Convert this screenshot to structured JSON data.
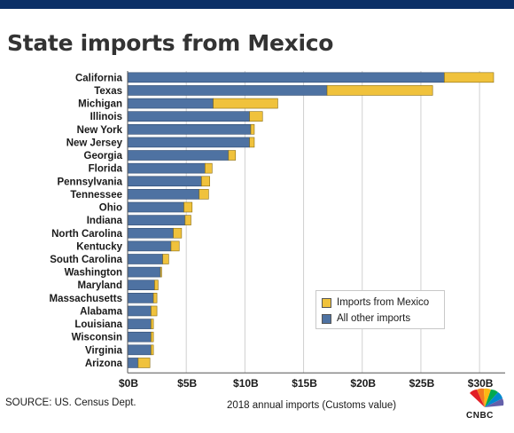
{
  "header": {
    "title": "State imports from Mexico",
    "bar_color": "#0b2f66"
  },
  "footer": {
    "source": "SOURCE: US. Census Dept.",
    "logo_text": "CNBC"
  },
  "legend": {
    "items": [
      "Imports from Mexico",
      "All other imports"
    ]
  },
  "colors": {
    "mexico": "#f0c23c",
    "other": "#4e72a2",
    "grid": "#d0d0d0"
  },
  "chart_data": {
    "type": "bar",
    "orientation": "horizontal",
    "stacked": true,
    "title": "State imports from Mexico",
    "xlabel": "2018 annual imports (Customs value)",
    "ylabel": "",
    "xlim": [
      0,
      32
    ],
    "x_ticks": [
      0,
      5,
      10,
      15,
      20,
      25,
      30
    ],
    "x_tick_labels": [
      "$0B",
      "$5B",
      "$10B",
      "$15B",
      "$20B",
      "$25B",
      "$30B"
    ],
    "grid": true,
    "legend_position": "bottom-right",
    "categories": [
      "California",
      "Texas",
      "Michigan",
      "Illinois",
      "New York",
      "New Jersey",
      "Georgia",
      "Florida",
      "Pennsylvania",
      "Tennessee",
      "Ohio",
      "Indiana",
      "North Carolina",
      "Kentucky",
      "South Carolina",
      "Washington",
      "Maryland",
      "Massachusetts",
      "Alabama",
      "Louisiana",
      "Wisconsin",
      "Virginia",
      "Arizona"
    ],
    "series": [
      {
        "name": "All other imports",
        "values": [
          27.0,
          17.0,
          7.3,
          10.4,
          10.5,
          10.4,
          8.6,
          6.6,
          6.3,
          6.1,
          4.8,
          4.9,
          3.9,
          3.7,
          3.0,
          2.8,
          2.3,
          2.2,
          2.0,
          2.0,
          2.0,
          2.0,
          0.9
        ]
      },
      {
        "name": "Imports from Mexico",
        "values": [
          4.2,
          9.0,
          5.5,
          1.1,
          0.3,
          0.4,
          0.6,
          0.6,
          0.7,
          0.8,
          0.7,
          0.5,
          0.7,
          0.7,
          0.5,
          0.1,
          0.3,
          0.3,
          0.5,
          0.2,
          0.2,
          0.2,
          1.0
        ]
      }
    ]
  }
}
